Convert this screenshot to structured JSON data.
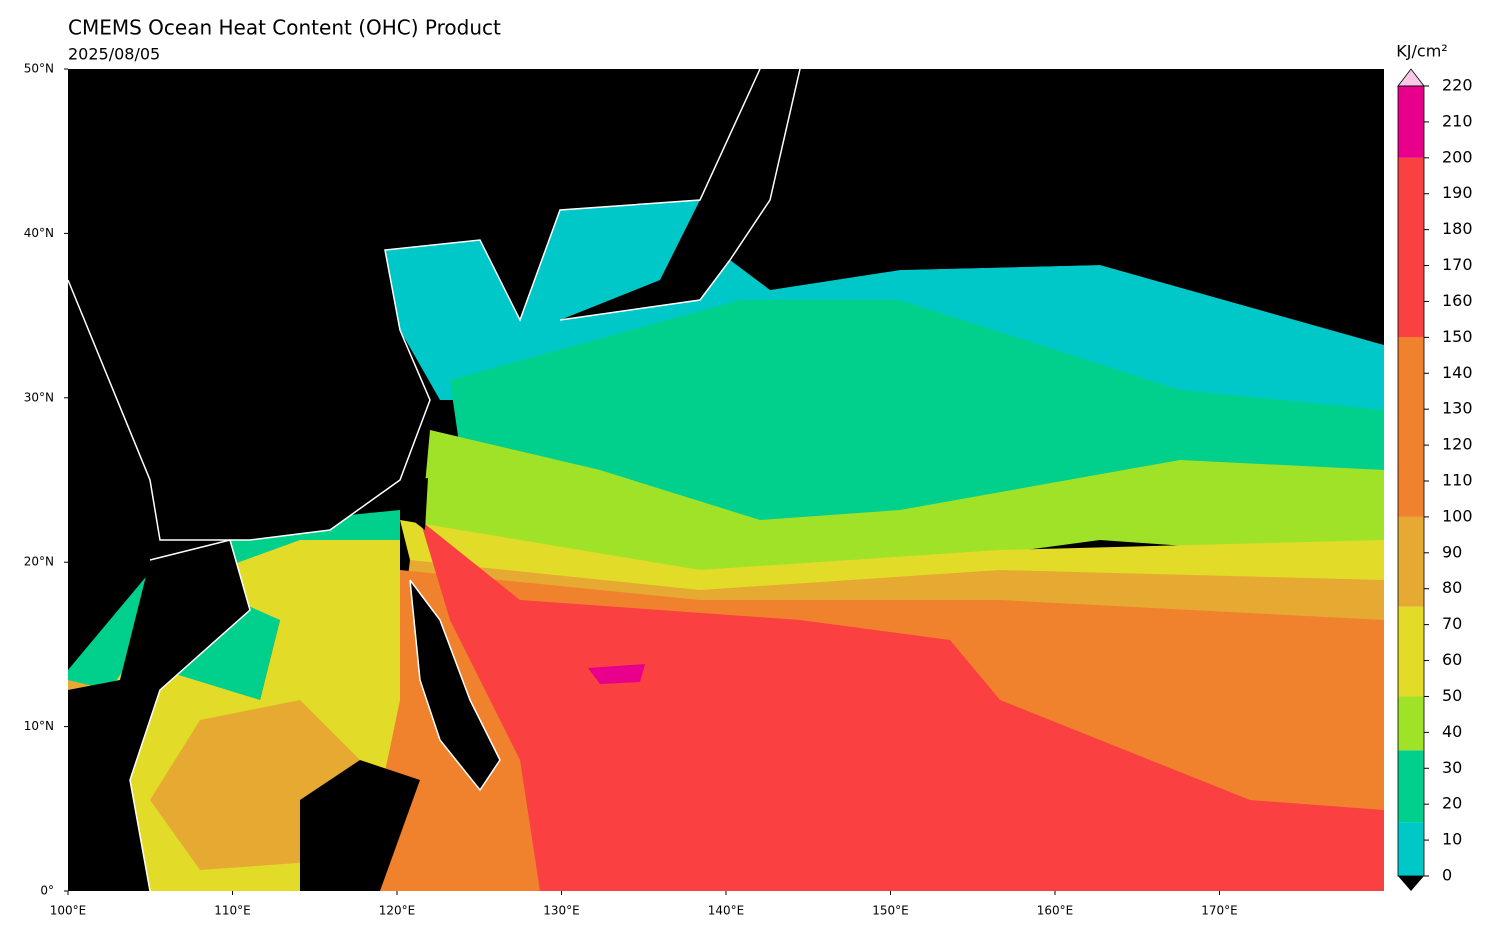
{
  "header": {
    "title": "CMEMS Ocean Heat Content (OHC) Product",
    "date": "2025/08/05"
  },
  "map": {
    "lon_lim": [
      100,
      180
    ],
    "lat_lim": [
      0,
      50
    ],
    "lon_ticks": [
      {
        "value": 100,
        "label": "100°E"
      },
      {
        "value": 110,
        "label": "110°E"
      },
      {
        "value": 120,
        "label": "120°E"
      },
      {
        "value": 130,
        "label": "130°E"
      },
      {
        "value": 140,
        "label": "140°E"
      },
      {
        "value": 150,
        "label": "150°E"
      },
      {
        "value": 160,
        "label": "160°E"
      },
      {
        "value": 170,
        "label": "170°E"
      }
    ],
    "lat_ticks": [
      {
        "value": 0,
        "label": "0°"
      },
      {
        "value": 10,
        "label": "10°N"
      },
      {
        "value": 20,
        "label": "20°N"
      },
      {
        "value": 30,
        "label": "30°N"
      },
      {
        "value": 40,
        "label": "40°N"
      },
      {
        "value": 50,
        "label": "50°N"
      }
    ]
  },
  "colorbar": {
    "unit": "KJ/cm²",
    "boundaries": [
      0,
      15,
      35,
      50,
      75,
      100,
      150,
      200,
      220
    ],
    "colors": [
      "#00c8c8",
      "#00d08c",
      "#a0e228",
      "#e2dc28",
      "#e6aa32",
      "#f0822d",
      "#fa4040",
      "#e8008c"
    ],
    "over_color": "#f8c8e8",
    "under_color": "#000000",
    "ticks": [
      0,
      10,
      20,
      30,
      40,
      50,
      60,
      70,
      80,
      90,
      100,
      110,
      120,
      130,
      140,
      150,
      160,
      170,
      180,
      190,
      200,
      210,
      220
    ]
  }
}
